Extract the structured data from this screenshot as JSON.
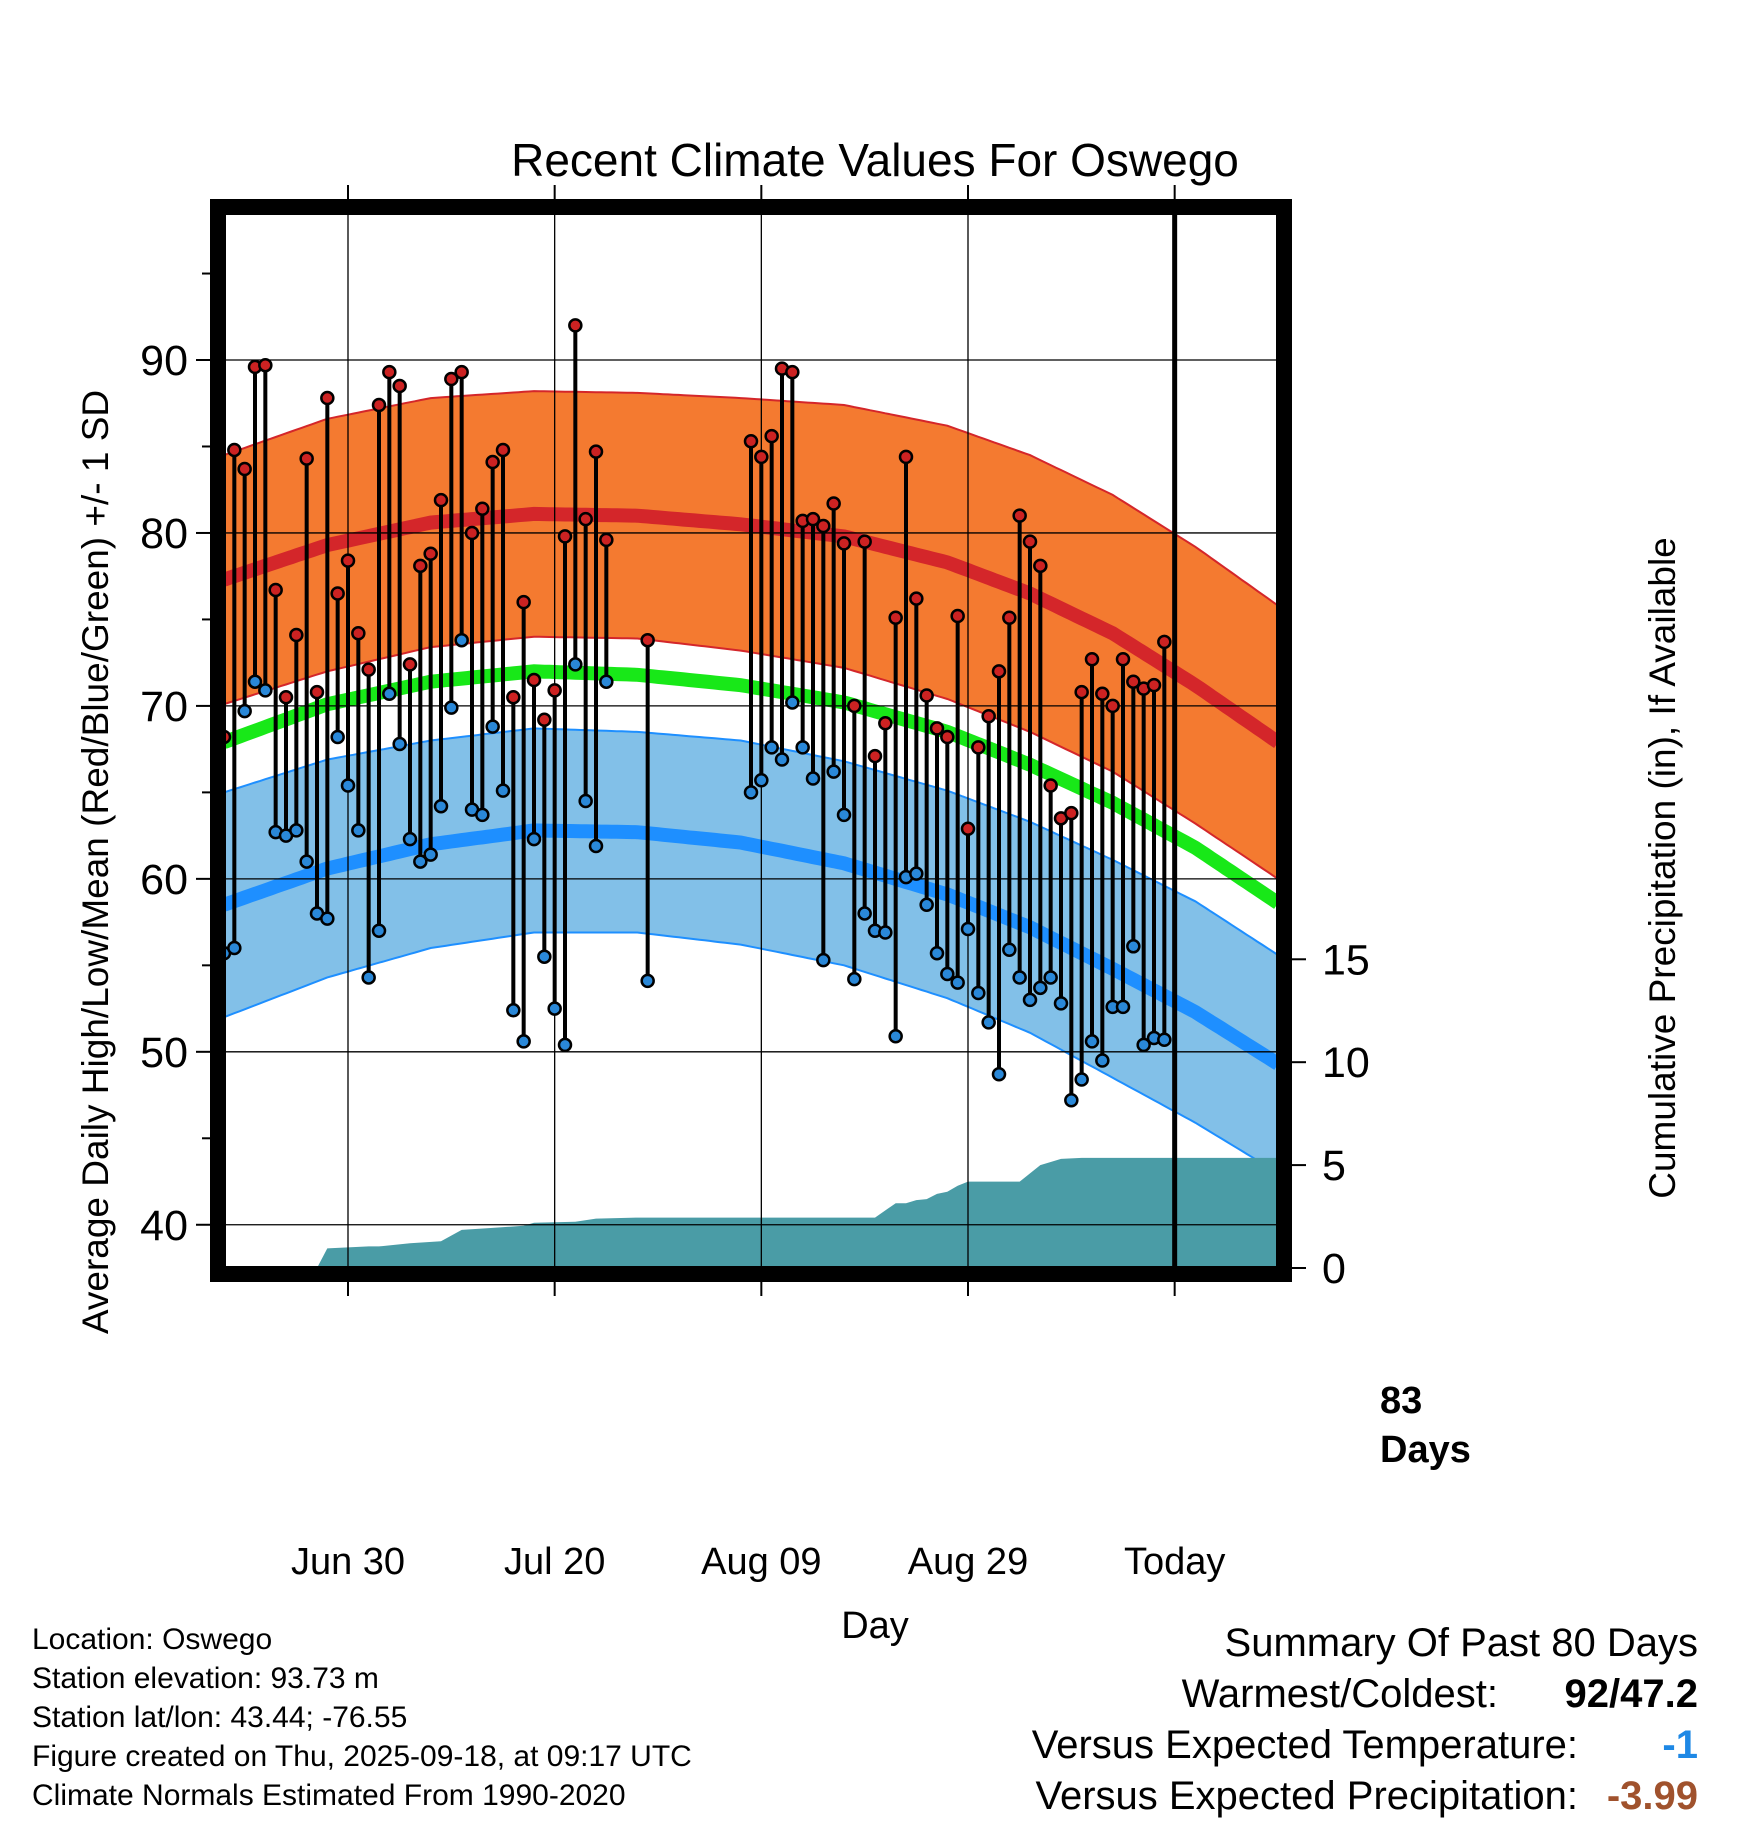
{
  "colors": {
    "high_band": "#f47a30",
    "high_mean": "#d4262a",
    "low_band": "#82c0e8",
    "low_mean": "#1e8fff",
    "mean": "#18e818",
    "precip": "#4a9ca6",
    "high_dot": "#cc2222",
    "low_dot": "#2a88d8",
    "temp_anomaly": "#1e88e5",
    "precip_anomaly": "#a0522d"
  },
  "chart_data": {
    "type": "line",
    "title": "Recent Climate Values For Oswego",
    "xlabel": "Day",
    "ylabel": "Average Daily High/Low/Mean (Red/Blue/Green) +/- 1 SD",
    "y2label": "Cumulative Precipitation (in), If Available",
    "x_domain_days": [
      -23,
      79
    ],
    "ylim": [
      37.5,
      98.5
    ],
    "y_ticks": [
      40,
      50,
      60,
      70,
      80,
      90
    ],
    "y2_ticks": [
      0,
      5,
      10,
      15
    ],
    "y2_scale": {
      "temp_at_zero": 37.5,
      "temp_per_inch": 1.19
    },
    "x_ticks": [
      {
        "day": -11,
        "label": "Jun 30"
      },
      {
        "day": 9,
        "label": "Jul 20"
      },
      {
        "day": 29,
        "label": "Aug 09"
      },
      {
        "day": 49,
        "label": "Aug 29"
      },
      {
        "day": 69,
        "label": "Today"
      }
    ],
    "today_day": 69,
    "today_annotation": [
      "83",
      "Days"
    ],
    "normals": {
      "days": [
        -23,
        -13,
        -3,
        7,
        17,
        27,
        37,
        47,
        55,
        63,
        71,
        79
      ],
      "high_mean": [
        77.3,
        79.3,
        80.6,
        81.1,
        81.0,
        80.5,
        79.8,
        78.3,
        76.5,
        74.2,
        71.2,
        67.9
      ],
      "high_sd": [
        7.2,
        7.3,
        7.2,
        7.1,
        7.1,
        7.3,
        7.6,
        7.9,
        8.0,
        8.0,
        8.0,
        7.9
      ],
      "mean": [
        67.9,
        70.1,
        71.4,
        72.0,
        71.8,
        71.2,
        70.2,
        68.5,
        66.6,
        64.4,
        61.8,
        58.6
      ],
      "low_mean": [
        58.5,
        60.6,
        62.0,
        62.8,
        62.7,
        62.1,
        60.9,
        59.1,
        57.2,
        54.8,
        52.3,
        49.3
      ],
      "low_sd": [
        6.5,
        6.3,
        6.0,
        5.9,
        5.8,
        5.9,
        5.9,
        6.0,
        6.1,
        6.3,
        6.4,
        6.3
      ]
    },
    "observations": [
      {
        "day": -23,
        "high": 68.2,
        "low": 55.7
      },
      {
        "day": -22,
        "high": 84.8,
        "low": 56.0
      },
      {
        "day": -21,
        "high": 83.7,
        "low": 69.7
      },
      {
        "day": -20,
        "high": 89.6,
        "low": 71.4
      },
      {
        "day": -19,
        "high": 89.7,
        "low": 70.9
      },
      {
        "day": -18,
        "high": 76.7,
        "low": 62.7
      },
      {
        "day": -17,
        "high": 70.5,
        "low": 62.5
      },
      {
        "day": -16,
        "high": 74.1,
        "low": 62.8
      },
      {
        "day": -15,
        "high": 84.3,
        "low": 61.0
      },
      {
        "day": -14,
        "high": 70.8,
        "low": 58.0
      },
      {
        "day": -13,
        "high": 87.8,
        "low": 57.7
      },
      {
        "day": -12,
        "high": 76.5,
        "low": 68.2
      },
      {
        "day": -11,
        "high": 78.4,
        "low": 65.4
      },
      {
        "day": -10,
        "high": 74.2,
        "low": 62.8
      },
      {
        "day": -9,
        "high": 72.1,
        "low": 54.3
      },
      {
        "day": -8,
        "high": 87.4,
        "low": 57.0
      },
      {
        "day": -7,
        "high": 89.3,
        "low": 70.7
      },
      {
        "day": -6,
        "high": 88.5,
        "low": 67.8
      },
      {
        "day": -5,
        "high": 72.4,
        "low": 62.3
      },
      {
        "day": -4,
        "high": 78.1,
        "low": 61.0
      },
      {
        "day": -3,
        "high": 78.8,
        "low": 61.4
      },
      {
        "day": -2,
        "high": 81.9,
        "low": 64.2
      },
      {
        "day": -1,
        "high": 88.9,
        "low": 69.9
      },
      {
        "day": 0,
        "high": 89.3,
        "low": 73.8
      },
      {
        "day": 1,
        "high": 80.0,
        "low": 64.0
      },
      {
        "day": 2,
        "high": 81.4,
        "low": 63.7
      },
      {
        "day": 3,
        "high": 84.1,
        "low": 68.8
      },
      {
        "day": 4,
        "high": 84.8,
        "low": 65.1
      },
      {
        "day": 5,
        "high": 70.5,
        "low": 52.4
      },
      {
        "day": 6,
        "high": 76.0,
        "low": 50.6
      },
      {
        "day": 7,
        "high": 71.5,
        "low": 62.3
      },
      {
        "day": 8,
        "high": 69.2,
        "low": 55.5
      },
      {
        "day": 9,
        "high": 70.9,
        "low": 52.5
      },
      {
        "day": 10,
        "high": 79.8,
        "low": 50.4
      },
      {
        "day": 11,
        "high": 92.0,
        "low": 72.4
      },
      {
        "day": 12,
        "high": 80.8,
        "low": 64.5
      },
      {
        "day": 13,
        "high": 84.7,
        "low": 61.9
      },
      {
        "day": 14,
        "high": 79.6,
        "low": 71.4
      },
      {
        "day": 18,
        "high": 73.8,
        "low": 54.1
      },
      {
        "day": 28,
        "high": 85.3,
        "low": 65.0
      },
      {
        "day": 29,
        "high": 84.4,
        "low": 65.7
      },
      {
        "day": 30,
        "high": 85.6,
        "low": 67.6
      },
      {
        "day": 31,
        "high": 89.5,
        "low": 66.9
      },
      {
        "day": 32,
        "high": 89.3,
        "low": 70.2
      },
      {
        "day": 33,
        "high": 80.7,
        "low": 67.6
      },
      {
        "day": 34,
        "high": 80.8,
        "low": 65.8
      },
      {
        "day": 35,
        "high": 80.4,
        "low": 55.3
      },
      {
        "day": 36,
        "high": 81.7,
        "low": 66.2
      },
      {
        "day": 37,
        "high": 79.4,
        "low": 63.7
      },
      {
        "day": 38,
        "high": 70.0,
        "low": 54.2
      },
      {
        "day": 39,
        "high": 79.5,
        "low": 58.0
      },
      {
        "day": 40,
        "high": 67.1,
        "low": 57.0
      },
      {
        "day": 41,
        "high": 69.0,
        "low": 56.9
      },
      {
        "day": 42,
        "high": 75.1,
        "low": 50.9
      },
      {
        "day": 43,
        "high": 84.4,
        "low": 60.1
      },
      {
        "day": 44,
        "high": 76.2,
        "low": 60.3
      },
      {
        "day": 45,
        "high": 70.6,
        "low": 58.5
      },
      {
        "day": 46,
        "high": 68.7,
        "low": 55.7
      },
      {
        "day": 47,
        "high": 68.2,
        "low": 54.5
      },
      {
        "day": 48,
        "high": 75.2,
        "low": 54.0
      },
      {
        "day": 49,
        "high": 62.9,
        "low": 57.1
      },
      {
        "day": 50,
        "high": 67.6,
        "low": 53.4
      },
      {
        "day": 51,
        "high": 69.4,
        "low": 51.7
      },
      {
        "day": 52,
        "high": 72.0,
        "low": 48.7
      },
      {
        "day": 53,
        "high": 75.1,
        "low": 55.9
      },
      {
        "day": 54,
        "high": 81.0,
        "low": 54.3
      },
      {
        "day": 55,
        "high": 79.5,
        "low": 53.0
      },
      {
        "day": 56,
        "high": 78.1,
        "low": 53.7
      },
      {
        "day": 57,
        "high": 65.4,
        "low": 54.3
      },
      {
        "day": 58,
        "high": 63.5,
        "low": 52.8
      },
      {
        "day": 59,
        "high": 63.8,
        "low": 47.2
      },
      {
        "day": 60,
        "high": 70.8,
        "low": 48.4
      },
      {
        "day": 61,
        "high": 72.7,
        "low": 50.6
      },
      {
        "day": 62,
        "high": 70.7,
        "low": 49.5
      },
      {
        "day": 63,
        "high": 70.0,
        "low": 52.6
      },
      {
        "day": 64,
        "high": 72.7,
        "low": 52.6
      },
      {
        "day": 65,
        "high": 71.4,
        "low": 56.1
      },
      {
        "day": 66,
        "high": 71.0,
        "low": 50.4
      },
      {
        "day": 67,
        "high": 71.2,
        "low": 50.8
      },
      {
        "day": 68,
        "high": 73.7,
        "low": 50.7
      }
    ],
    "cumulative_precip_in": {
      "days": [
        -23,
        -14,
        -13,
        -9,
        -8,
        -5,
        -2,
        0,
        3,
        6,
        7,
        11,
        13,
        17,
        22,
        27,
        32,
        37,
        40,
        42,
        43,
        44,
        45,
        46,
        47,
        48,
        49,
        51,
        53,
        54,
        56,
        57,
        58,
        60,
        62,
        69,
        79
      ],
      "inches": [
        0.0,
        0.0,
        0.95,
        1.05,
        1.05,
        1.2,
        1.3,
        1.85,
        1.95,
        2.05,
        2.2,
        2.25,
        2.4,
        2.45,
        2.45,
        2.45,
        2.45,
        2.45,
        2.45,
        3.15,
        3.15,
        3.3,
        3.35,
        3.6,
        3.7,
        4.0,
        4.2,
        4.2,
        4.2,
        4.2,
        5.0,
        5.15,
        5.3,
        5.35,
        5.35,
        5.35,
        5.35
      ]
    }
  },
  "footer": {
    "location": "Location: Oswego",
    "elevation": "Station elevation: 93.73 m",
    "latlon": "Station lat/lon: 43.44; -76.55",
    "created": "Figure created on Thu, 2025-09-18, at 09:17 UTC",
    "normals_source": "Climate Normals Estimated From 1990-2020"
  },
  "summary": {
    "title": "Summary Of Past 80 Days",
    "warmest_coldest_label": "Warmest/Coldest:",
    "warmest_coldest_value": "92/47.2",
    "temp_label": "Versus Expected Temperature:",
    "temp_value": "-1",
    "precip_label": "Versus Expected Precipitation:",
    "precip_value": "-3.99"
  }
}
